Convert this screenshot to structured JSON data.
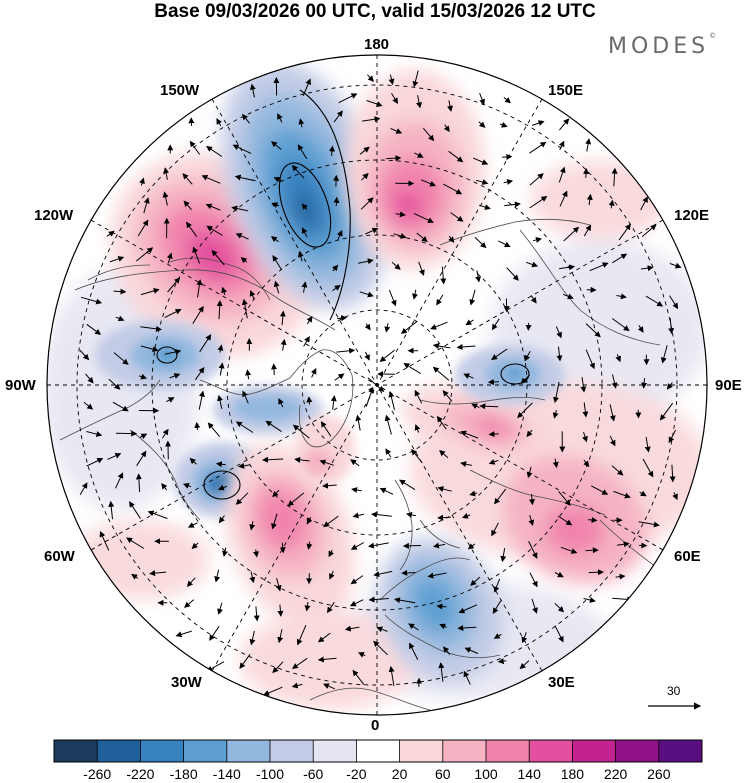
{
  "title": "Base 09/03/2026 00 UTC, valid 15/03/2026 12 UTC",
  "brand": "MODES",
  "brand_mark": "©",
  "longitude_labels": {
    "top": "180",
    "bottom": "0",
    "left": "90W",
    "right": "90E",
    "upper_left_1": "150W",
    "upper_left_2": "120W",
    "upper_right_1": "150E",
    "upper_right_2": "120E",
    "lower_left_1": "60W",
    "lower_left_2": "30W",
    "lower_right_1": "60E",
    "lower_right_2": "30E"
  },
  "reference_vector": {
    "label": "30"
  },
  "colorbar": {
    "ticks": [
      "-260",
      "-220",
      "-180",
      "-140",
      "-100",
      "-60",
      "-20",
      "20",
      "60",
      "100",
      "140",
      "180",
      "220",
      "260"
    ],
    "colors": [
      "#1b3c5e",
      "#20609a",
      "#3782bf",
      "#5d9fd2",
      "#93b8de",
      "#c3cce6",
      "#e6e6f2",
      "#ffffff",
      "#f9d7d9",
      "#f5b3c3",
      "#f184ad",
      "#e3509f",
      "#c2238f",
      "#8f1288",
      "#5a0f80"
    ]
  },
  "anomaly_centers": [
    {
      "name": "anomaly-positive-north-pacific",
      "sign": "positive",
      "value": 200
    },
    {
      "name": "anomaly-negative-bering",
      "sign": "negative",
      "value": -240
    },
    {
      "name": "anomaly-positive-east-siberia",
      "sign": "positive",
      "value": 180
    },
    {
      "name": "anomaly-negative-hudson",
      "sign": "negative",
      "value": -120
    },
    {
      "name": "anomaly-negative-canada-archipelago",
      "sign": "negative",
      "value": -100
    },
    {
      "name": "anomaly-negative-newfoundland",
      "sign": "negative",
      "value": -200
    },
    {
      "name": "anomaly-positive-north-atlantic",
      "sign": "positive",
      "value": 160
    },
    {
      "name": "anomaly-positive-greenland",
      "sign": "positive",
      "value": 80
    },
    {
      "name": "anomaly-negative-europe",
      "sign": "negative",
      "value": -160
    },
    {
      "name": "anomaly-positive-kara",
      "sign": "positive",
      "value": 140
    },
    {
      "name": "anomaly-negative-central-siberia",
      "sign": "negative",
      "value": -120
    },
    {
      "name": "anomaly-positive-central-asia",
      "sign": "positive",
      "value": 120
    }
  ]
}
